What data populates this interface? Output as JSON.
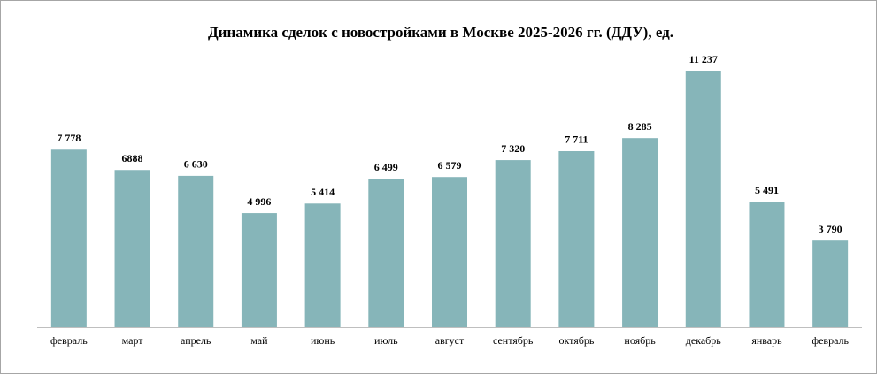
{
  "chart_data": {
    "type": "bar",
    "title": "Динамика сделок с новостройками в Москве 2025-2026 гг. (ДДУ), ед.",
    "categories": [
      "февраль",
      "март",
      "апрель",
      "май",
      "июнь",
      "июль",
      "август",
      "сентябрь",
      "октябрь",
      "ноябрь",
      "декабрь",
      "январь",
      "февраль"
    ],
    "values": [
      7778,
      6888,
      6630,
      4996,
      5414,
      6499,
      6579,
      7320,
      7711,
      8285,
      11237,
      5491,
      3790
    ],
    "value_labels": [
      "7 778",
      "6888",
      "6 630",
      "4 996",
      "5 414",
      "6 499",
      "6 579",
      "7 320",
      "7 711",
      "8 285",
      "11 237",
      "5 491",
      "3 790"
    ],
    "color": "#86b5b9"
  }
}
